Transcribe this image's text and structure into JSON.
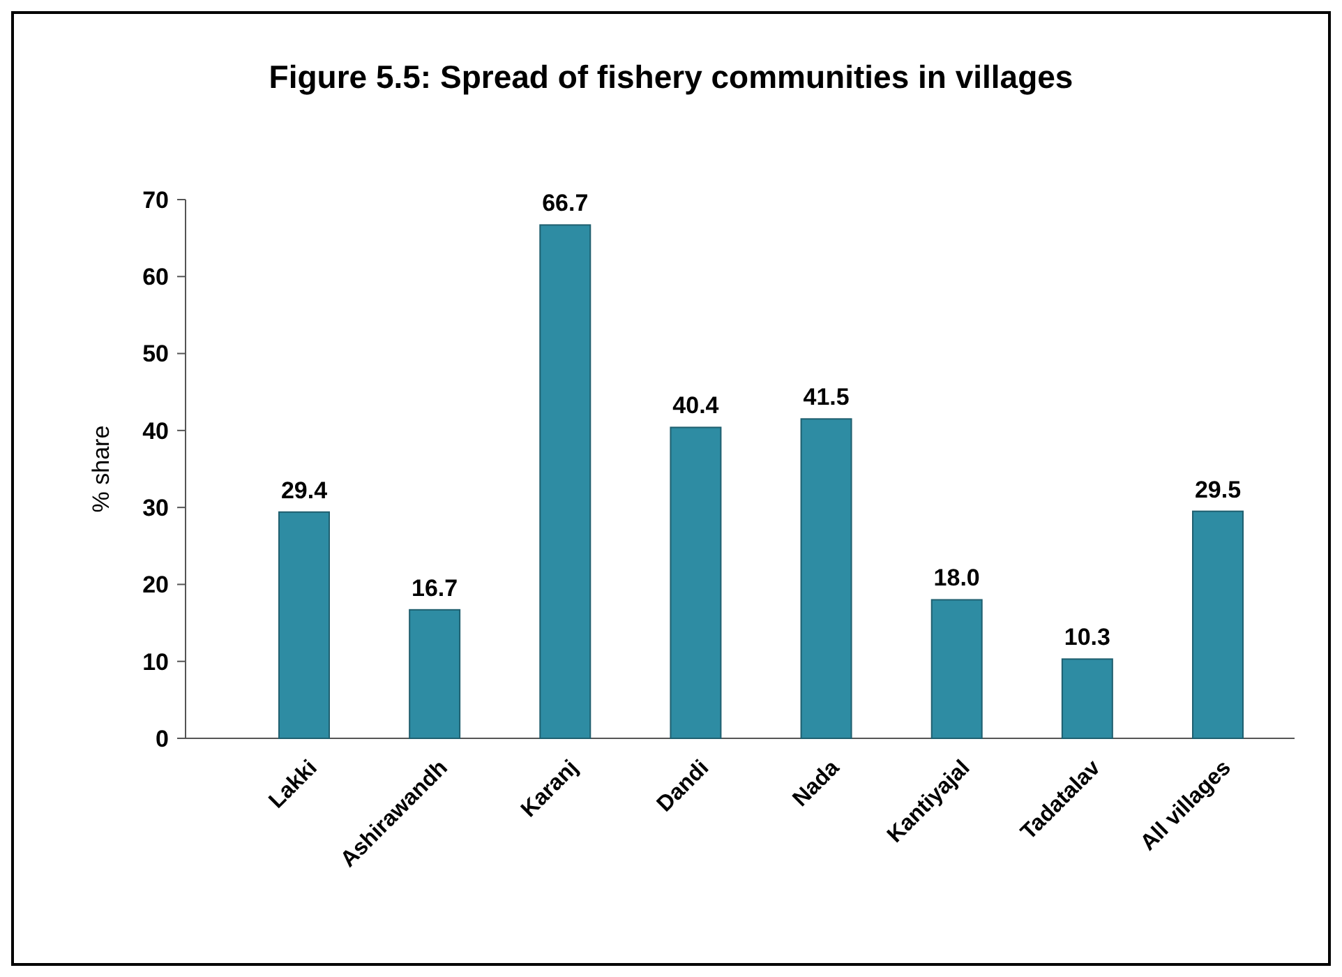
{
  "chart_data": {
    "type": "bar",
    "title": "Figure 5.5: Spread of fishery communities in villages",
    "ylabel": "% share",
    "categories": [
      "Lakki",
      "Ashirawandh",
      "Karanj",
      "Dandi",
      "Nada",
      "Kantiyajal",
      "Tadatalav",
      "All villages"
    ],
    "values": [
      29.4,
      16.7,
      66.7,
      40.4,
      41.5,
      18.0,
      10.3,
      29.5
    ],
    "value_labels": [
      "29.4",
      "16.7",
      "66.7",
      "40.4",
      "41.5",
      "18.0",
      "10.3",
      "29.5"
    ],
    "color": "#2e8ca3",
    "ylim": [
      0,
      70
    ],
    "yticks": [
      0,
      10,
      20,
      30,
      40,
      50,
      60,
      70
    ]
  }
}
